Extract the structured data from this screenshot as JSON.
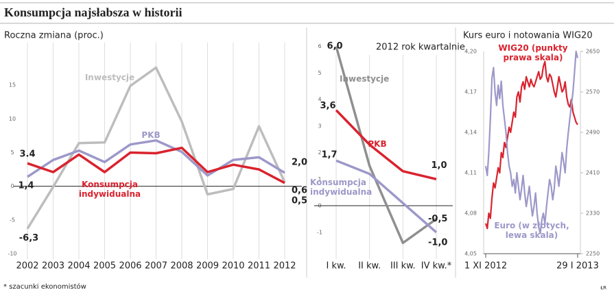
{
  "title": "Konsumpcja najsłabsza w historii",
  "footnote": "* szacunki ekonomistów",
  "credit": "ŁR",
  "chart_data": [
    {
      "type": "line",
      "subtitle": "Roczna zmiana (proc.)",
      "categories": [
        "2002",
        "2003",
        "2004",
        "2005",
        "2006",
        "2007",
        "2008",
        "2009",
        "2010",
        "2011",
        "2012"
      ],
      "ylim": [
        -10,
        20
      ],
      "yticks": [
        -10,
        -5,
        0,
        5,
        10,
        15
      ],
      "grid": true,
      "zero_line": true,
      "series": [
        {
          "name": "Inwestycje",
          "color": "#bdbdbd",
          "values": [
            -6.3,
            -0.1,
            6.4,
            6.5,
            14.9,
            17.6,
            9.6,
            -1.2,
            -0.4,
            8.9,
            0.6
          ],
          "value_labels": [
            "-6,3",
            null,
            null,
            null,
            null,
            null,
            null,
            null,
            null,
            null,
            "0,6"
          ]
        },
        {
          "name": "PKB",
          "color": "#9c98c9",
          "values": [
            1.4,
            3.9,
            5.3,
            3.6,
            6.2,
            6.8,
            5.1,
            1.6,
            3.9,
            4.3,
            2.0
          ],
          "value_labels": [
            "1,4",
            null,
            null,
            null,
            null,
            null,
            null,
            null,
            null,
            null,
            "2,0"
          ]
        },
        {
          "name": "Konsumpcja indywidualna",
          "color": "#d9232e",
          "values": [
            3.4,
            2.1,
            4.7,
            2.1,
            5.0,
            4.9,
            5.7,
            2.1,
            3.2,
            2.5,
            0.5
          ],
          "value_labels": [
            "3.4",
            null,
            null,
            null,
            null,
            null,
            null,
            null,
            null,
            null,
            "0,5"
          ]
        }
      ]
    },
    {
      "type": "line",
      "subtitle": "2012 rok kwartalnie",
      "categories": [
        "I kw.",
        "II kw.",
        "III kw.",
        "IV kw.*"
      ],
      "ylim": [
        -1.6,
        6.2
      ],
      "yticks": [
        -1,
        0,
        1,
        2,
        3,
        4,
        5,
        6
      ],
      "grid": true,
      "zero_line": true,
      "series": [
        {
          "name": "Inwestycje",
          "color": "#8f8f8f",
          "values": [
            6.0,
            1.5,
            -1.4,
            -0.5
          ],
          "value_labels": [
            "6,0",
            null,
            null,
            "-0,5"
          ]
        },
        {
          "name": "PKB",
          "color": "#d9232e",
          "values": [
            3.6,
            2.3,
            1.3,
            1.0
          ],
          "value_labels": [
            "3,6",
            null,
            null,
            "1,0"
          ]
        },
        {
          "name": "Konsumpcja indywidualna",
          "color": "#9c98c9",
          "values": [
            1.7,
            1.2,
            0.1,
            -1.0
          ],
          "value_labels": [
            "1,7",
            null,
            null,
            "-1,0"
          ]
        }
      ]
    },
    {
      "type": "line",
      "subtitle": "Kurs euro i notowania WIG20",
      "categories": [
        "1 XI 2012",
        null,
        null,
        null,
        null,
        null,
        null,
        null,
        null,
        null,
        null,
        null,
        null,
        null,
        null,
        null,
        null,
        null,
        null,
        null,
        null,
        null,
        null,
        null,
        null,
        null,
        null,
        null,
        null,
        null,
        null,
        null,
        null,
        null,
        null,
        null,
        null,
        null,
        null,
        null,
        null,
        null,
        null,
        null,
        null,
        null,
        null,
        null,
        null,
        null,
        null,
        null,
        null,
        null,
        null,
        null,
        null,
        null,
        null,
        "29 I 2013"
      ],
      "ylim": [
        4.05,
        4.2
      ],
      "yticks": [
        {
          "value": 4.05,
          "label": "4,05"
        },
        {
          "value": 4.08,
          "label": "4,08"
        },
        {
          "value": 4.11,
          "label": "4,11"
        },
        {
          "value": 4.14,
          "label": "4,14"
        },
        {
          "value": 4.17,
          "label": "4,17"
        },
        {
          "value": 4.2,
          "label": "4,20"
        }
      ],
      "y2lim": [
        2250,
        2650
      ],
      "y2ticks": [
        2250,
        2330,
        2410,
        2490,
        2570,
        2650
      ],
      "grid": false,
      "zero_line": false,
      "series": [
        {
          "name": "WIG20 (punkty prawa skala)",
          "color": "#d9232e",
          "axis": "y2",
          "values": [
            2310,
            2300,
            2330,
            2320,
            2360,
            2390,
            2380,
            2400,
            2420,
            2410,
            2450,
            2440,
            2470,
            2460,
            2480,
            2500,
            2490,
            2510,
            2530,
            2520,
            2560,
            2570,
            2550,
            2580,
            2590,
            2575,
            2600,
            2590,
            2580,
            2595,
            2585,
            2580,
            2590,
            2600,
            2610,
            2595,
            2600,
            2620,
            2630,
            2600,
            2590,
            2605,
            2600,
            2585,
            2570,
            2560,
            2580,
            2600,
            2585,
            2570,
            2575,
            2590,
            2560,
            2545,
            2540,
            2555,
            2530,
            2520,
            2510,
            2505
          ]
        },
        {
          "name": "Euro (w złotych, lewa skala)",
          "color": "#9c98c9",
          "values": [
            4.115,
            4.108,
            4.125,
            4.15,
            4.18,
            4.188,
            4.17,
            4.16,
            4.175,
            4.165,
            4.178,
            4.16,
            4.15,
            4.14,
            4.125,
            4.115,
            4.11,
            4.1,
            4.105,
            4.095,
            4.11,
            4.1,
            4.09,
            4.098,
            4.108,
            4.095,
            4.085,
            4.092,
            4.1,
            4.088,
            4.078,
            4.085,
            4.095,
            4.08,
            4.07,
            4.065,
            4.075,
            4.08,
            4.072,
            4.085,
            4.095,
            4.105,
            4.1,
            4.09,
            4.098,
            4.115,
            4.108,
            4.1,
            4.112,
            4.125,
            4.118,
            4.11,
            4.128,
            4.14,
            4.15,
            4.16,
            4.17,
            4.185,
            4.2,
            4.195
          ]
        }
      ]
    }
  ]
}
